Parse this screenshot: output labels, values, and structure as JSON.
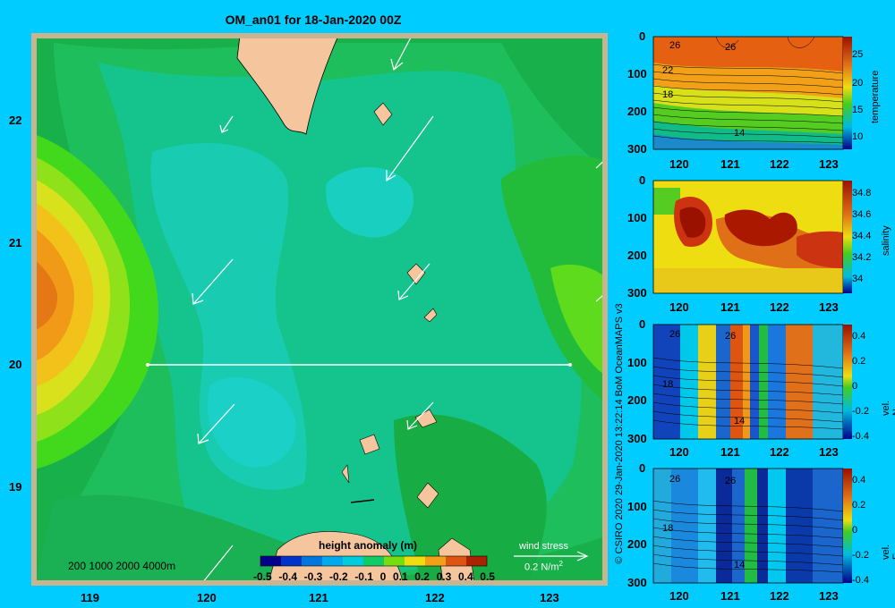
{
  "title": "OM_an01 for 18-Jan-2020 00Z",
  "map": {
    "x_ticks": [
      "119",
      "120",
      "121",
      "122",
      "123"
    ],
    "y_ticks": [
      "22",
      "21",
      "20",
      "19"
    ],
    "bathymetry_legend": "200  1000  2000  4000m",
    "colorbar_title": "height anomaly (m)",
    "colorbar_ticks": [
      "-0.5",
      "-0.4",
      "-0.3",
      "-0.2",
      "-0.1",
      "0",
      "0.1",
      "0.2",
      "0.3",
      "0.4",
      "0.5"
    ],
    "wind_label": "wind stress",
    "wind_unit": "0.2 N/m",
    "wind_unit_sup": "2"
  },
  "credit": "© CSIRO 2020   29-Jan-2020 13:22:14  BoM OceanMAPS v3",
  "sections": [
    {
      "id": "temperature",
      "cbar_label": "temperature",
      "cbar_ticks": [
        "25",
        "20",
        "15",
        "10"
      ],
      "y_ticks": [
        "0",
        "100",
        "200",
        "300"
      ],
      "x_ticks": [
        "120",
        "121",
        "122",
        "123"
      ],
      "contour_labels": [
        "26",
        "26",
        "22",
        "18",
        "14"
      ]
    },
    {
      "id": "salinity",
      "cbar_label": "salinity",
      "cbar_ticks": [
        "34.8",
        "34.6",
        "34.4",
        "34.2",
        "34"
      ],
      "y_ticks": [
        "0",
        "100",
        "200",
        "300"
      ],
      "x_ticks": [
        "120",
        "121",
        "122",
        "123"
      ],
      "contour_labels": []
    },
    {
      "id": "vel-n",
      "cbar_label": "vel. N  (m/s)",
      "cbar_ticks": [
        "0.4",
        "0.2",
        "0",
        "-0.2",
        "-0.4"
      ],
      "y_ticks": [
        "0",
        "100",
        "200",
        "300"
      ],
      "x_ticks": [
        "120",
        "121",
        "122",
        "123"
      ],
      "contour_labels": [
        "26",
        "26",
        "18",
        "14"
      ]
    },
    {
      "id": "vel-e",
      "cbar_label": "vel. E  (m/s)",
      "cbar_ticks": [
        "0.4",
        "0.2",
        "0",
        "-0.2",
        "-0.4"
      ],
      "y_ticks": [
        "0",
        "100",
        "200",
        "300"
      ],
      "x_ticks": [
        "120",
        "121",
        "122",
        "123"
      ],
      "contour_labels": [
        "26",
        "26",
        "18",
        "14"
      ]
    }
  ],
  "colors": {
    "background": "#00ccff",
    "land": "#f5c59e",
    "arrow": "#ffffff"
  }
}
